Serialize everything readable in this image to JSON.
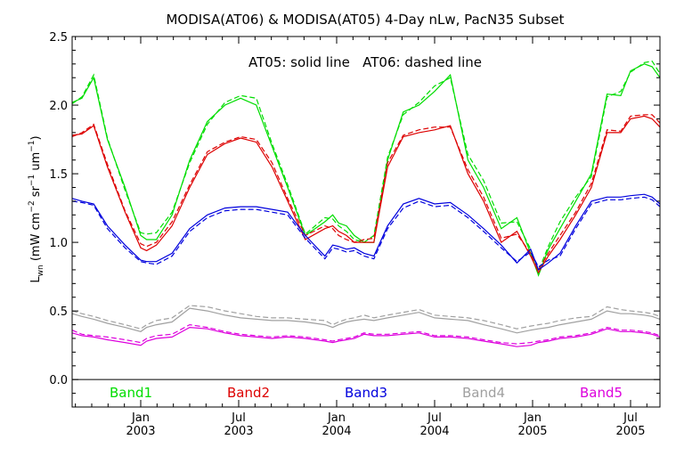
{
  "chart_data": {
    "type": "line",
    "title": "MODISA(AT06) & MODISA(AT05) 4-Day nLw, PacN35 Subset",
    "annotation": "AT05: solid line   AT06: dashed line",
    "ylabel": {
      "main": "L",
      "sub": "wn",
      "units_pre": "(mW cm",
      "exp1": "−2",
      "mid": " sr",
      "exp2": "−1",
      "post": " um",
      "exp3": "−1",
      "close": ")"
    },
    "ylim": [
      -0.2,
      2.5
    ],
    "yticks": [
      "0.0",
      "0.5",
      "1.0",
      "1.5",
      "2.0",
      "2.5"
    ],
    "xlim": [
      2002.65,
      2005.65
    ],
    "xticks": [
      {
        "t": 2003.0,
        "line1": "Jan",
        "line2": "2003"
      },
      {
        "t": 2003.5,
        "line1": "Jul",
        "line2": "2003"
      },
      {
        "t": 2004.0,
        "line1": "Jan",
        "line2": "2004"
      },
      {
        "t": 2004.5,
        "line1": "Jul",
        "line2": "2004"
      },
      {
        "t": 2005.0,
        "line1": "Jan",
        "line2": "2005"
      },
      {
        "t": 2005.5,
        "line1": "Jul",
        "line2": "2005"
      }
    ],
    "x": [
      2002.65,
      2002.7,
      2002.76,
      2002.83,
      2002.92,
      2003.0,
      2003.03,
      2003.08,
      2003.16,
      2003.25,
      2003.34,
      2003.43,
      2003.51,
      2003.59,
      2003.67,
      2003.75,
      2003.84,
      2003.94,
      2003.98,
      2004.01,
      2004.05,
      2004.09,
      2004.14,
      2004.19,
      2004.26,
      2004.34,
      2004.42,
      2004.5,
      2004.58,
      2004.67,
      2004.75,
      2004.84,
      2004.92,
      2004.99,
      2005.03,
      2005.08,
      2005.14,
      2005.22,
      2005.3,
      2005.38,
      2005.45,
      2005.5,
      2005.57,
      2005.61,
      2005.65
    ],
    "series": [
      {
        "name": "Band1",
        "color": "#00dd00",
        "dashed": false,
        "values": [
          2.02,
          2.05,
          2.2,
          1.75,
          1.4,
          1.05,
          1.02,
          1.02,
          1.2,
          1.6,
          1.88,
          2.0,
          2.05,
          2.0,
          1.7,
          1.4,
          1.05,
          1.15,
          1.2,
          1.14,
          1.12,
          1.05,
          1.0,
          1.0,
          1.6,
          1.95,
          2.0,
          2.1,
          2.22,
          1.6,
          1.4,
          1.1,
          1.18,
          0.92,
          0.76,
          0.95,
          1.1,
          1.3,
          1.5,
          2.08,
          2.07,
          2.25,
          2.3,
          2.28,
          2.2
        ]
      },
      {
        "name": "Band1",
        "color": "#00dd00",
        "dashed": true,
        "values": [
          2.01,
          2.06,
          2.22,
          1.76,
          1.38,
          1.07,
          1.06,
          1.07,
          1.22,
          1.58,
          1.86,
          2.02,
          2.07,
          2.05,
          1.72,
          1.42,
          1.06,
          1.18,
          1.17,
          1.12,
          1.08,
          1.02,
          1.0,
          1.05,
          1.62,
          1.93,
          2.02,
          2.14,
          2.2,
          1.64,
          1.45,
          1.14,
          1.15,
          0.95,
          0.79,
          0.97,
          1.15,
          1.33,
          1.48,
          2.06,
          2.1,
          2.24,
          2.31,
          2.32,
          2.23
        ]
      },
      {
        "name": "Band2",
        "color": "#dd0000",
        "dashed": false,
        "values": [
          1.78,
          1.79,
          1.85,
          1.55,
          1.22,
          0.96,
          0.94,
          0.98,
          1.12,
          1.4,
          1.64,
          1.72,
          1.76,
          1.73,
          1.55,
          1.3,
          1.02,
          1.1,
          1.12,
          1.08,
          1.05,
          1.0,
          1.0,
          1.0,
          1.55,
          1.77,
          1.8,
          1.82,
          1.85,
          1.5,
          1.3,
          1.0,
          1.08,
          0.9,
          0.78,
          0.9,
          1.02,
          1.2,
          1.4,
          1.8,
          1.8,
          1.9,
          1.92,
          1.9,
          1.84
        ]
      },
      {
        "name": "Band2",
        "color": "#dd0000",
        "dashed": true,
        "values": [
          1.77,
          1.8,
          1.86,
          1.57,
          1.23,
          0.99,
          0.97,
          1.0,
          1.15,
          1.42,
          1.66,
          1.73,
          1.77,
          1.75,
          1.58,
          1.32,
          1.05,
          1.12,
          1.1,
          1.05,
          1.02,
          1.0,
          1.02,
          1.03,
          1.58,
          1.78,
          1.82,
          1.84,
          1.84,
          1.53,
          1.33,
          1.03,
          1.06,
          0.92,
          0.8,
          0.92,
          1.05,
          1.22,
          1.43,
          1.82,
          1.81,
          1.92,
          1.93,
          1.93,
          1.87
        ]
      },
      {
        "name": "Band3",
        "color": "#0000dd",
        "dashed": false,
        "values": [
          1.32,
          1.3,
          1.28,
          1.12,
          0.98,
          0.87,
          0.86,
          0.86,
          0.92,
          1.1,
          1.2,
          1.25,
          1.26,
          1.26,
          1.24,
          1.22,
          1.05,
          0.9,
          0.98,
          0.97,
          0.95,
          0.96,
          0.92,
          0.9,
          1.12,
          1.28,
          1.32,
          1.28,
          1.29,
          1.2,
          1.1,
          0.98,
          0.85,
          0.95,
          0.8,
          0.85,
          0.92,
          1.12,
          1.3,
          1.33,
          1.33,
          1.34,
          1.35,
          1.33,
          1.28
        ]
      },
      {
        "name": "Band3",
        "color": "#0000dd",
        "dashed": true,
        "values": [
          1.3,
          1.29,
          1.27,
          1.1,
          0.96,
          0.86,
          0.85,
          0.84,
          0.9,
          1.08,
          1.18,
          1.23,
          1.24,
          1.24,
          1.22,
          1.2,
          1.03,
          0.88,
          0.96,
          0.95,
          0.93,
          0.94,
          0.9,
          0.88,
          1.1,
          1.25,
          1.3,
          1.26,
          1.27,
          1.18,
          1.08,
          0.96,
          0.86,
          0.93,
          0.82,
          0.87,
          0.9,
          1.1,
          1.28,
          1.31,
          1.31,
          1.32,
          1.33,
          1.31,
          1.26
        ]
      },
      {
        "name": "Band4",
        "color": "#a0a0a0",
        "dashed": false,
        "values": [
          0.48,
          0.46,
          0.44,
          0.41,
          0.38,
          0.35,
          0.38,
          0.4,
          0.42,
          0.52,
          0.5,
          0.47,
          0.45,
          0.44,
          0.43,
          0.43,
          0.42,
          0.4,
          0.38,
          0.4,
          0.42,
          0.43,
          0.44,
          0.43,
          0.45,
          0.47,
          0.49,
          0.45,
          0.44,
          0.43,
          0.4,
          0.37,
          0.34,
          0.36,
          0.37,
          0.38,
          0.4,
          0.42,
          0.44,
          0.5,
          0.48,
          0.48,
          0.47,
          0.46,
          0.44
        ]
      },
      {
        "name": "Band4",
        "color": "#a0a0a0",
        "dashed": true,
        "values": [
          0.5,
          0.48,
          0.46,
          0.43,
          0.4,
          0.37,
          0.4,
          0.43,
          0.45,
          0.54,
          0.53,
          0.5,
          0.48,
          0.46,
          0.45,
          0.45,
          0.44,
          0.43,
          0.4,
          0.42,
          0.44,
          0.45,
          0.47,
          0.45,
          0.47,
          0.49,
          0.51,
          0.47,
          0.46,
          0.45,
          0.43,
          0.4,
          0.37,
          0.39,
          0.4,
          0.41,
          0.43,
          0.45,
          0.46,
          0.53,
          0.51,
          0.5,
          0.49,
          0.48,
          0.46
        ]
      },
      {
        "name": "Band5",
        "color": "#dd00dd",
        "dashed": false,
        "values": [
          0.34,
          0.32,
          0.31,
          0.29,
          0.27,
          0.25,
          0.28,
          0.3,
          0.31,
          0.38,
          0.37,
          0.34,
          0.32,
          0.31,
          0.3,
          0.31,
          0.3,
          0.28,
          0.27,
          0.28,
          0.29,
          0.3,
          0.33,
          0.32,
          0.32,
          0.33,
          0.34,
          0.31,
          0.31,
          0.3,
          0.28,
          0.26,
          0.24,
          0.25,
          0.27,
          0.28,
          0.3,
          0.31,
          0.33,
          0.37,
          0.35,
          0.35,
          0.34,
          0.33,
          0.31
        ]
      },
      {
        "name": "Band5",
        "color": "#dd00dd",
        "dashed": true,
        "values": [
          0.36,
          0.33,
          0.32,
          0.31,
          0.29,
          0.27,
          0.3,
          0.32,
          0.33,
          0.4,
          0.38,
          0.35,
          0.33,
          0.32,
          0.31,
          0.32,
          0.31,
          0.29,
          0.28,
          0.29,
          0.3,
          0.31,
          0.34,
          0.33,
          0.33,
          0.34,
          0.35,
          0.32,
          0.32,
          0.31,
          0.29,
          0.27,
          0.26,
          0.27,
          0.28,
          0.29,
          0.31,
          0.32,
          0.34,
          0.38,
          0.36,
          0.36,
          0.35,
          0.34,
          0.32
        ]
      }
    ],
    "legend": [
      {
        "label": "Band1",
        "color": "#00dd00"
      },
      {
        "label": "Band2",
        "color": "#dd0000"
      },
      {
        "label": "Band3",
        "color": "#0000dd"
      },
      {
        "label": "Band4",
        "color": "#a0a0a0"
      },
      {
        "label": "Band5",
        "color": "#dd00dd"
      }
    ],
    "legend_placement": "bottom-inside",
    "zero_line": true,
    "grid": false
  }
}
